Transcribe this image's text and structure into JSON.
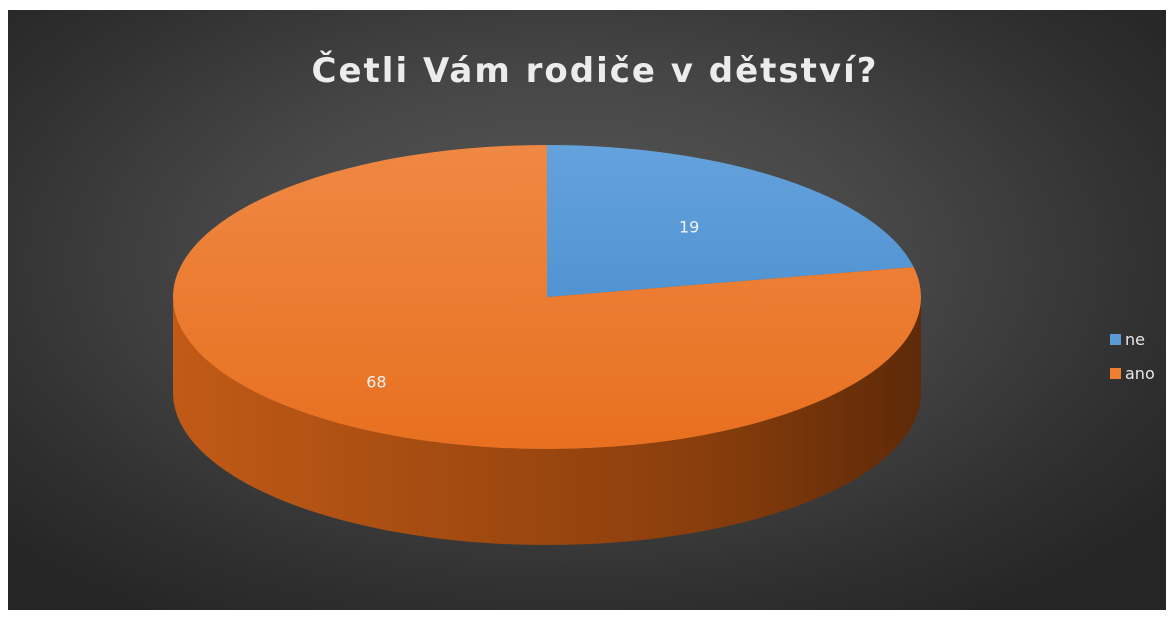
{
  "chart_data": {
    "type": "pie",
    "title": "Četli Vám rodiče v dětství?",
    "categories": [
      "ne",
      "ano"
    ],
    "values": [
      19,
      68
    ],
    "colors": [
      "#5b9bd5",
      "#ed7d31"
    ],
    "legend_position": "right",
    "style": "3d"
  }
}
